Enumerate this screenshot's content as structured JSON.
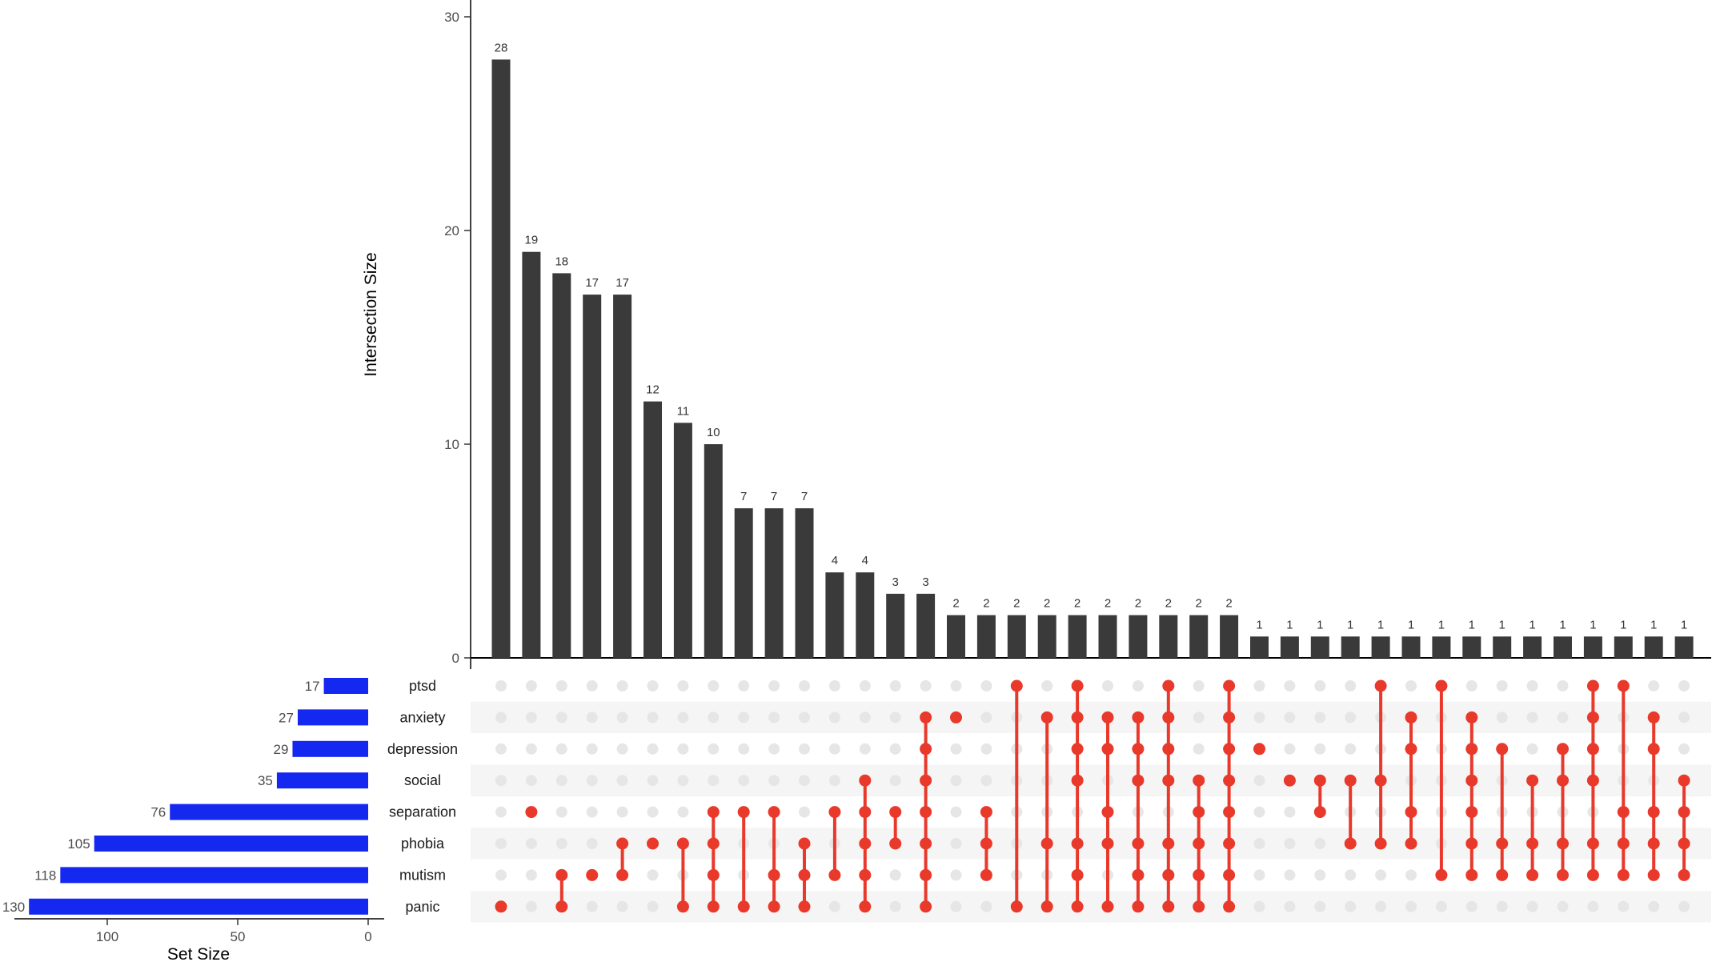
{
  "colors": {
    "intersection_bar": "#3a3a3a",
    "set_bar": "#1428f0",
    "active_dot": "#e8392b",
    "inactive_dot": "#e6e6e6",
    "stripe": "#f5f5f5"
  },
  "chart_data": [
    {
      "type": "bar",
      "role": "intersection-size",
      "ylabel": "Intersection Size",
      "ylim": [
        0,
        30
      ],
      "yticks": [
        "0",
        "10",
        "20",
        "30"
      ],
      "values": [
        28,
        19,
        18,
        17,
        17,
        12,
        11,
        10,
        7,
        7,
        7,
        4,
        4,
        3,
        3,
        2,
        2,
        2,
        2,
        2,
        2,
        2,
        2,
        2,
        2,
        1,
        1,
        1,
        1,
        1,
        1,
        1,
        1,
        1,
        1,
        1,
        1,
        1,
        1,
        1
      ],
      "labels": [
        "28",
        "19",
        "18",
        "17",
        "17",
        "12",
        "11",
        "10",
        "7",
        "7",
        "7",
        "4",
        "4",
        "3",
        "3",
        "2",
        "2",
        "2",
        "2",
        "2",
        "2",
        "2",
        "2",
        "2",
        "2",
        "1",
        "1",
        "1",
        "1",
        "1",
        "1",
        "1",
        "1",
        "1",
        "1",
        "1",
        "1",
        "1",
        "1",
        "1"
      ]
    },
    {
      "type": "bar",
      "role": "set-size",
      "xlabel": "Set Size",
      "xticks": [
        "100",
        "50",
        "0"
      ],
      "sets": [
        "ptsd",
        "anxiety",
        "depression",
        "social",
        "separation",
        "phobia",
        "mutism",
        "panic"
      ],
      "values": [
        17,
        27,
        29,
        35,
        76,
        105,
        118,
        130
      ],
      "labels": [
        "17",
        "27",
        "29",
        "35",
        "76",
        "105",
        "118",
        "130"
      ]
    },
    {
      "type": "table",
      "role": "intersection-matrix",
      "sets": [
        "ptsd",
        "anxiety",
        "depression",
        "social",
        "separation",
        "phobia",
        "mutism",
        "panic"
      ],
      "columns": [
        [
          "panic"
        ],
        [
          "separation"
        ],
        [
          "mutism",
          "panic"
        ],
        [
          "mutism"
        ],
        [
          "phobia",
          "mutism"
        ],
        [
          "phobia"
        ],
        [
          "phobia",
          "panic"
        ],
        [
          "separation",
          "phobia",
          "mutism",
          "panic"
        ],
        [
          "separation",
          "panic"
        ],
        [
          "separation",
          "mutism",
          "panic"
        ],
        [
          "phobia",
          "mutism",
          "panic"
        ],
        [
          "separation",
          "mutism"
        ],
        [
          "social",
          "separation",
          "phobia",
          "mutism",
          "panic"
        ],
        [
          "separation",
          "phobia"
        ],
        [
          "anxiety",
          "depression",
          "social",
          "separation",
          "phobia",
          "mutism",
          "panic"
        ],
        [
          "anxiety"
        ],
        [
          "separation",
          "phobia",
          "mutism"
        ],
        [
          "ptsd",
          "panic"
        ],
        [
          "anxiety",
          "phobia",
          "panic"
        ],
        [
          "ptsd",
          "anxiety",
          "depression",
          "social",
          "phobia",
          "mutism",
          "panic"
        ],
        [
          "anxiety",
          "depression",
          "separation",
          "phobia",
          "panic"
        ],
        [
          "anxiety",
          "depression",
          "social",
          "phobia",
          "mutism",
          "panic"
        ],
        [
          "ptsd",
          "anxiety",
          "depression",
          "social",
          "phobia",
          "mutism",
          "panic"
        ],
        [
          "social",
          "separation",
          "phobia",
          "mutism",
          "panic"
        ],
        [
          "ptsd",
          "anxiety",
          "depression",
          "social",
          "separation",
          "phobia",
          "mutism",
          "panic"
        ],
        [
          "depression"
        ],
        [
          "social"
        ],
        [
          "social",
          "separation"
        ],
        [
          "social",
          "phobia"
        ],
        [
          "ptsd",
          "social",
          "phobia"
        ],
        [
          "anxiety",
          "depression",
          "separation",
          "phobia"
        ],
        [
          "ptsd",
          "mutism"
        ],
        [
          "anxiety",
          "depression",
          "social",
          "separation",
          "phobia",
          "mutism"
        ],
        [
          "depression",
          "phobia",
          "mutism"
        ],
        [
          "social",
          "phobia",
          "mutism"
        ],
        [
          "depression",
          "social",
          "phobia",
          "mutism"
        ],
        [
          "ptsd",
          "anxiety",
          "depression",
          "social",
          "phobia",
          "mutism"
        ],
        [
          "ptsd",
          "separation",
          "phobia",
          "mutism"
        ],
        [
          "anxiety",
          "depression",
          "separation",
          "phobia",
          "mutism"
        ],
        [
          "social",
          "separation",
          "phobia",
          "mutism"
        ]
      ]
    }
  ]
}
